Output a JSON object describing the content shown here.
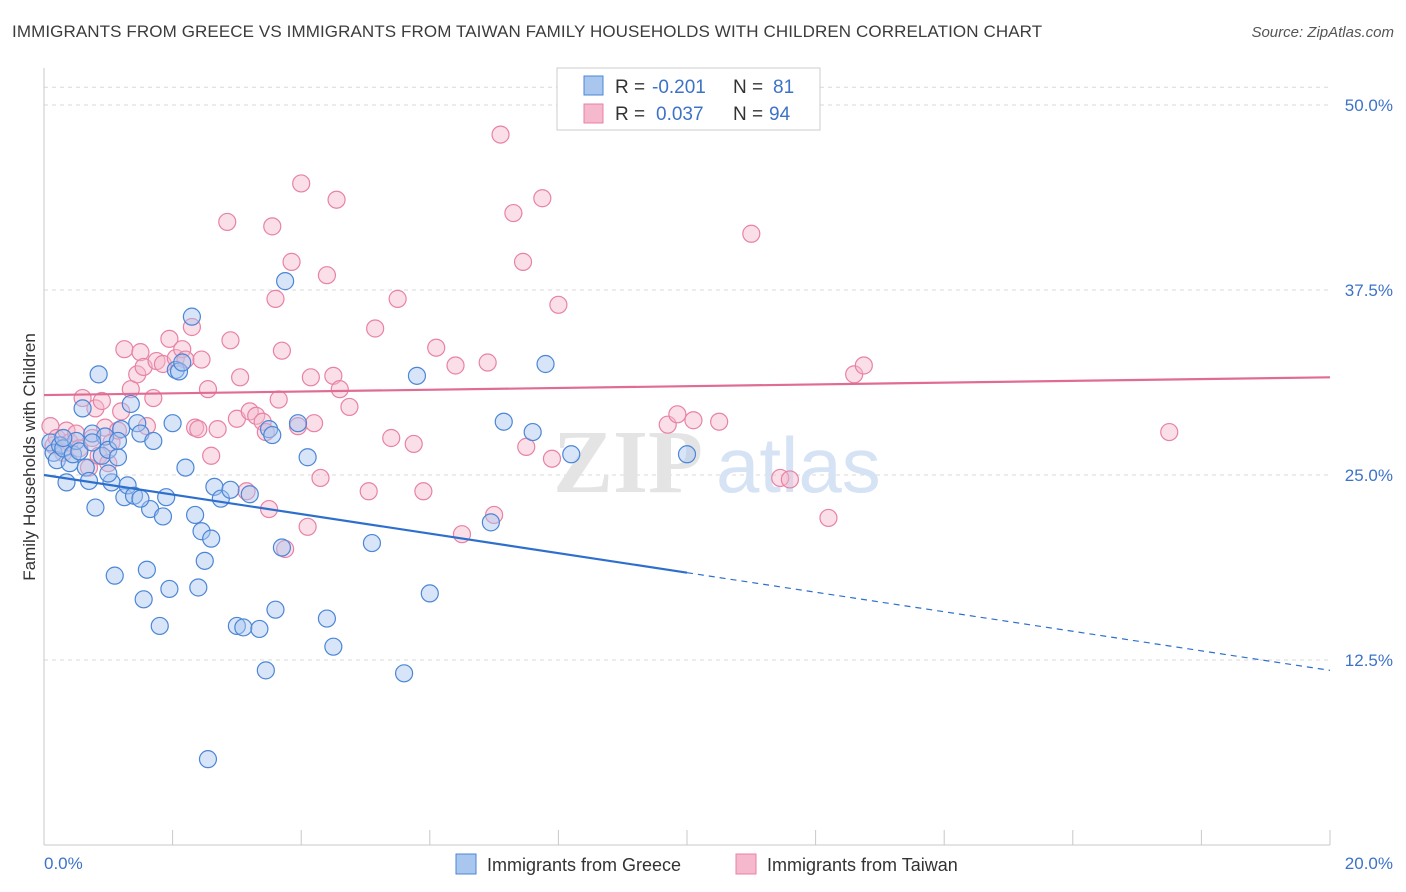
{
  "title": "IMMIGRANTS FROM GREECE VS IMMIGRANTS FROM TAIWAN FAMILY HOUSEHOLDS WITH CHILDREN CORRELATION CHART",
  "source": "Source: ZipAtlas.com",
  "watermark": {
    "zip": "ZIP",
    "atlas": "atlas"
  },
  "legend": {
    "r_label": "R =",
    "n_label": "N =",
    "greece": {
      "r": "-0.201",
      "n": "81"
    },
    "taiwan": {
      "r": "0.037",
      "n": "94"
    }
  },
  "colors": {
    "greece_fill": "#a9c6ef",
    "greece_stroke": "#4b86d6",
    "greece_line": "#2e6fcd",
    "taiwan_fill": "#f5b8cc",
    "taiwan_stroke": "#e882a5",
    "taiwan_line": "#e06c95",
    "grid": "#d8d8d8",
    "tick_label": "#3d73c7"
  },
  "chart_data": {
    "type": "scatter",
    "title": "IMMIGRANTS FROM GREECE VS IMMIGRANTS FROM TAIWAN FAMILY HOUSEHOLDS WITH CHILDREN CORRELATION CHART",
    "xlabel": "",
    "ylabel": "Family Households with Children",
    "xlim": [
      0,
      20
    ],
    "ylim": [
      0,
      52.5
    ],
    "x_tick_labels": [
      "0.0%",
      "20.0%"
    ],
    "y_ticks": [
      12.5,
      25.0,
      37.5,
      50.0
    ],
    "y_tick_labels": [
      "12.5%",
      "25.0%",
      "37.5%",
      "50.0%"
    ],
    "grid": true,
    "legend_position": "top-center",
    "series": [
      {
        "name": "Immigrants from Greece",
        "r": -0.201,
        "n": 81,
        "trend": {
          "x0": 0,
          "y0": 25.0,
          "x1": 10.0,
          "y1": 18.4,
          "dashed_to_x": 20,
          "dashed_to_y": 11.8
        },
        "points": [
          [
            0.1,
            27.2
          ],
          [
            0.15,
            26.5
          ],
          [
            0.2,
            26.0
          ],
          [
            0.25,
            27.0
          ],
          [
            0.3,
            26.8
          ],
          [
            0.35,
            24.5
          ],
          [
            0.4,
            25.8
          ],
          [
            0.45,
            26.4
          ],
          [
            0.5,
            27.3
          ],
          [
            0.55,
            26.6
          ],
          [
            0.6,
            29.5
          ],
          [
            0.65,
            25.5
          ],
          [
            0.7,
            24.6
          ],
          [
            0.75,
            27.8
          ],
          [
            0.8,
            22.8
          ],
          [
            0.85,
            31.8
          ],
          [
            0.9,
            26.3
          ],
          [
            0.95,
            27.6
          ],
          [
            1.0,
            26.7
          ],
          [
            1.05,
            24.5
          ],
          [
            1.1,
            18.2
          ],
          [
            1.15,
            26.2
          ],
          [
            1.2,
            28.1
          ],
          [
            1.25,
            23.5
          ],
          [
            1.3,
            24.3
          ],
          [
            1.35,
            29.8
          ],
          [
            1.4,
            23.6
          ],
          [
            1.45,
            28.5
          ],
          [
            1.5,
            27.8
          ],
          [
            1.55,
            16.6
          ],
          [
            1.6,
            18.6
          ],
          [
            1.65,
            22.7
          ],
          [
            1.7,
            27.3
          ],
          [
            1.8,
            14.8
          ],
          [
            1.85,
            22.2
          ],
          [
            1.9,
            23.5
          ],
          [
            1.95,
            17.3
          ],
          [
            2.0,
            28.5
          ],
          [
            2.05,
            32.1
          ],
          [
            2.1,
            32.0
          ],
          [
            2.15,
            32.6
          ],
          [
            2.2,
            25.5
          ],
          [
            2.3,
            35.7
          ],
          [
            2.35,
            22.3
          ],
          [
            2.4,
            17.4
          ],
          [
            2.45,
            21.2
          ],
          [
            2.5,
            19.2
          ],
          [
            2.55,
            5.8
          ],
          [
            2.65,
            24.2
          ],
          [
            2.75,
            23.4
          ],
          [
            2.9,
            24.0
          ],
          [
            3.0,
            14.8
          ],
          [
            3.1,
            14.7
          ],
          [
            3.2,
            23.7
          ],
          [
            3.35,
            14.6
          ],
          [
            3.45,
            11.8
          ],
          [
            3.5,
            28.1
          ],
          [
            3.55,
            27.7
          ],
          [
            3.6,
            15.9
          ],
          [
            3.7,
            20.1
          ],
          [
            3.75,
            38.1
          ],
          [
            3.95,
            28.5
          ],
          [
            4.1,
            26.2
          ],
          [
            4.4,
            15.3
          ],
          [
            4.5,
            13.4
          ],
          [
            5.1,
            20.4
          ],
          [
            5.6,
            11.6
          ],
          [
            5.8,
            31.7
          ],
          [
            6.0,
            17.0
          ],
          [
            6.95,
            21.8
          ],
          [
            7.15,
            28.6
          ],
          [
            7.6,
            27.9
          ],
          [
            7.8,
            32.5
          ],
          [
            8.2,
            26.4
          ],
          [
            10.0,
            26.4
          ],
          [
            1.15,
            27.3
          ],
          [
            0.3,
            27.5
          ],
          [
            0.75,
            27.2
          ],
          [
            1.0,
            25.1
          ],
          [
            1.5,
            23.4
          ],
          [
            2.6,
            20.7
          ]
        ]
      },
      {
        "name": "Immigrants from Taiwan",
        "r": 0.037,
        "n": 94,
        "trend": {
          "x0": 0,
          "y0": 30.4,
          "x1": 20,
          "y1": 31.6
        },
        "points": [
          [
            0.1,
            28.3
          ],
          [
            0.15,
            27.0
          ],
          [
            0.2,
            27.5
          ],
          [
            0.3,
            26.5
          ],
          [
            0.35,
            28.0
          ],
          [
            0.4,
            27.2
          ],
          [
            0.5,
            27.8
          ],
          [
            0.55,
            26.8
          ],
          [
            0.6,
            30.2
          ],
          [
            0.7,
            25.5
          ],
          [
            0.75,
            27.5
          ],
          [
            0.8,
            29.5
          ],
          [
            0.85,
            26.3
          ],
          [
            0.9,
            30.0
          ],
          [
            0.95,
            28.2
          ],
          [
            1.0,
            25.8
          ],
          [
            1.05,
            27.2
          ],
          [
            1.15,
            28.0
          ],
          [
            1.2,
            29.3
          ],
          [
            1.25,
            33.5
          ],
          [
            1.35,
            30.8
          ],
          [
            1.45,
            31.8
          ],
          [
            1.5,
            33.3
          ],
          [
            1.55,
            32.3
          ],
          [
            1.6,
            28.3
          ],
          [
            1.7,
            30.2
          ],
          [
            1.75,
            32.7
          ],
          [
            1.85,
            32.5
          ],
          [
            1.95,
            34.2
          ],
          [
            2.05,
            32.9
          ],
          [
            2.15,
            33.5
          ],
          [
            2.2,
            32.8
          ],
          [
            2.3,
            35.0
          ],
          [
            2.35,
            28.2
          ],
          [
            2.4,
            28.1
          ],
          [
            2.45,
            32.8
          ],
          [
            2.55,
            30.8
          ],
          [
            2.6,
            26.3
          ],
          [
            2.7,
            28.1
          ],
          [
            2.85,
            42.1
          ],
          [
            2.9,
            34.1
          ],
          [
            3.0,
            28.8
          ],
          [
            3.05,
            31.6
          ],
          [
            3.15,
            23.9
          ],
          [
            3.2,
            29.3
          ],
          [
            3.3,
            29.0
          ],
          [
            3.4,
            28.6
          ],
          [
            3.45,
            27.9
          ],
          [
            3.5,
            22.7
          ],
          [
            3.55,
            41.8
          ],
          [
            3.6,
            36.9
          ],
          [
            3.65,
            30.1
          ],
          [
            3.7,
            33.4
          ],
          [
            3.75,
            20.0
          ],
          [
            3.85,
            39.4
          ],
          [
            3.95,
            28.3
          ],
          [
            4.0,
            44.7
          ],
          [
            4.1,
            21.5
          ],
          [
            4.15,
            31.6
          ],
          [
            4.2,
            28.5
          ],
          [
            4.3,
            24.8
          ],
          [
            4.4,
            38.5
          ],
          [
            4.5,
            31.7
          ],
          [
            4.55,
            43.6
          ],
          [
            4.6,
            30.8
          ],
          [
            4.75,
            29.6
          ],
          [
            5.05,
            23.9
          ],
          [
            5.15,
            34.9
          ],
          [
            5.4,
            27.5
          ],
          [
            5.5,
            36.9
          ],
          [
            5.75,
            27.1
          ],
          [
            5.9,
            23.9
          ],
          [
            6.1,
            33.6
          ],
          [
            6.4,
            32.4
          ],
          [
            6.5,
            21.0
          ],
          [
            6.9,
            32.6
          ],
          [
            7.0,
            22.3
          ],
          [
            7.1,
            48.0
          ],
          [
            7.3,
            42.7
          ],
          [
            7.45,
            39.4
          ],
          [
            7.5,
            26.9
          ],
          [
            7.75,
            43.7
          ],
          [
            7.9,
            26.1
          ],
          [
            8.0,
            36.5
          ],
          [
            9.7,
            28.4
          ],
          [
            9.85,
            29.1
          ],
          [
            10.1,
            28.7
          ],
          [
            10.5,
            28.6
          ],
          [
            11.0,
            41.3
          ],
          [
            11.45,
            24.8
          ],
          [
            11.6,
            24.7
          ],
          [
            12.2,
            22.1
          ],
          [
            12.6,
            31.8
          ],
          [
            12.75,
            32.4
          ],
          [
            17.5,
            27.9
          ]
        ]
      }
    ]
  },
  "bottom_legend": {
    "greece": "Immigrants from Greece",
    "taiwan": "Immigrants from Taiwan"
  }
}
